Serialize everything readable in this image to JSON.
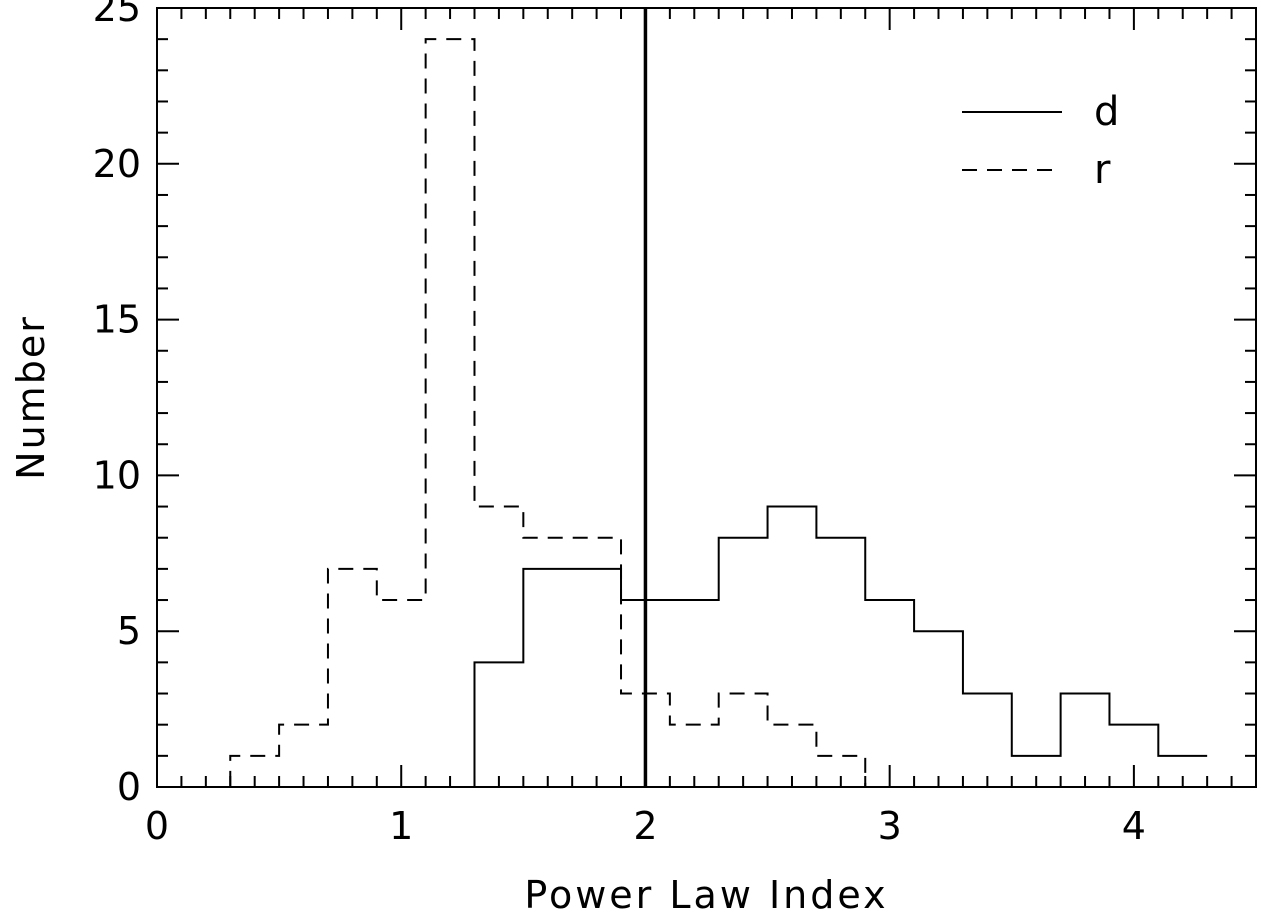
{
  "chart_data": {
    "type": "histogram",
    "title": "",
    "xlabel": "Power Law Index",
    "ylabel": "Number",
    "xlim": [
      0,
      4.5
    ],
    "ylim": [
      0,
      25
    ],
    "grid": false,
    "legend_position": "top-right",
    "x_tick_labels": [
      "0",
      "1",
      "2",
      "3",
      "4"
    ],
    "y_tick_labels": [
      "0",
      "5",
      "10",
      "15",
      "20",
      "25"
    ],
    "bin_edges": [
      0.1,
      0.3,
      0.5,
      0.7,
      0.9,
      1.1,
      1.3,
      1.5,
      1.7,
      1.9,
      2.1,
      2.3,
      2.5,
      2.7,
      2.9,
      3.1,
      3.3,
      3.5,
      3.7,
      3.9,
      4.1,
      4.3
    ],
    "series": [
      {
        "name": "d",
        "line_style": "solid",
        "counts": [
          0,
          0,
          0,
          0,
          0,
          0,
          4,
          7,
          7,
          6,
          6,
          8,
          9,
          8,
          6,
          5,
          3,
          1,
          3,
          2,
          1
        ]
      },
      {
        "name": "r",
        "line_style": "dashed",
        "counts": [
          0,
          1,
          2,
          7,
          6,
          24,
          9,
          8,
          8,
          3,
          2,
          3,
          2,
          1,
          0,
          0,
          0,
          0,
          0,
          0,
          0
        ]
      }
    ],
    "vertical_line": {
      "x": 2.0,
      "style": "solid"
    }
  }
}
